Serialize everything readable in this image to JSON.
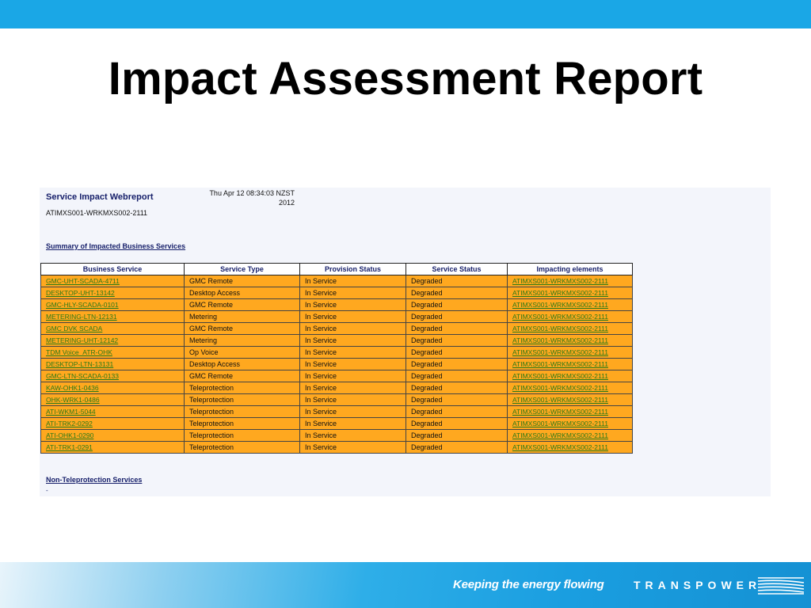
{
  "slide": {
    "title": "Impact Assessment Report"
  },
  "report": {
    "heading": "Service Impact Webreport",
    "subid": "ATIMXS001-WRKMXS002-2111",
    "datetime": "Thu Apr 12 08:34:03 NZST 2012",
    "summary_heading": "Summary of Impacted Business Services",
    "nontp_heading": "Non-Teleprotection Services",
    "nontp_dash": "-"
  },
  "table": {
    "headers": [
      "Business Service",
      "Service Type",
      "Provision Status",
      "Service Status",
      "Impacting elements"
    ],
    "rows": [
      {
        "service": "GMC-UHT-SCADA-4711",
        "type": "GMC Remote",
        "provision": "In Service",
        "status": "Degraded",
        "element": "ATIMXS001-WRKMXS002-2111"
      },
      {
        "service": "DESKTOP-UHT-13142",
        "type": "Desktop Access",
        "provision": "In Service",
        "status": "Degraded",
        "element": "ATIMXS001-WRKMXS002-2111"
      },
      {
        "service": "GMC-HLY-SCADA-0101",
        "type": "GMC Remote",
        "provision": "In Service",
        "status": "Degraded",
        "element": "ATIMXS001-WRKMXS002-2111"
      },
      {
        "service": "METERING-LTN-12131",
        "type": "Metering",
        "provision": "In Service",
        "status": "Degraded",
        "element": "ATIMXS001-WRKMXS002-2111"
      },
      {
        "service": "GMC DVK SCADA",
        "type": "GMC Remote",
        "provision": "In Service",
        "status": "Degraded",
        "element": "ATIMXS001-WRKMXS002-2111"
      },
      {
        "service": "METERING-UHT-12142",
        "type": "Metering",
        "provision": "In Service",
        "status": "Degraded",
        "element": "ATIMXS001-WRKMXS002-2111"
      },
      {
        "service": "TDM Voice_ATR-OHK",
        "type": "Op Voice",
        "provision": "In Service",
        "status": "Degraded",
        "element": "ATIMXS001-WRKMXS002-2111"
      },
      {
        "service": "DESKTOP-LTN-13131",
        "type": "Desktop Access",
        "provision": "In Service",
        "status": "Degraded",
        "element": "ATIMXS001-WRKMXS002-2111"
      },
      {
        "service": "GMC-LTN-SCADA-0133",
        "type": "GMC Remote",
        "provision": "In Service",
        "status": "Degraded",
        "element": "ATIMXS001-WRKMXS002-2111"
      },
      {
        "service": "KAW-OHK1-0436",
        "type": "Teleprotection",
        "provision": "In Service",
        "status": "Degraded",
        "element": "ATIMXS001-WRKMXS002-2111"
      },
      {
        "service": "OHK-WRK1-0486",
        "type": "Teleprotection",
        "provision": "In Service",
        "status": "Degraded",
        "element": "ATIMXS001-WRKMXS002-2111"
      },
      {
        "service": "ATI-WKM1-5044",
        "type": "Teleprotection",
        "provision": "In Service",
        "status": "Degraded",
        "element": "ATIMXS001-WRKMXS002-2111"
      },
      {
        "service": "ATI-TRK2-0292",
        "type": "Teleprotection",
        "provision": "In Service",
        "status": "Degraded",
        "element": "ATIMXS001-WRKMXS002-2111"
      },
      {
        "service": "ATI-OHK1-0290",
        "type": "Teleprotection",
        "provision": "In Service",
        "status": "Degraded",
        "element": "ATIMXS001-WRKMXS002-2111"
      },
      {
        "service": "ATI-TRK1-0291",
        "type": "Teleprotection",
        "provision": "In Service",
        "status": "Degraded",
        "element": "ATIMXS001-WRKMXS002-2111"
      }
    ]
  },
  "footer": {
    "tagline": "Keeping the energy flowing",
    "brand": "TRANSPOWER"
  },
  "colors": {
    "top_bar": "#1aa7e6",
    "row_fill": "#ffa81f",
    "link_text": "#2b7a17",
    "heading_text": "#17206b"
  },
  "icons": {
    "brand_logo": "transpower-logo-icon"
  }
}
